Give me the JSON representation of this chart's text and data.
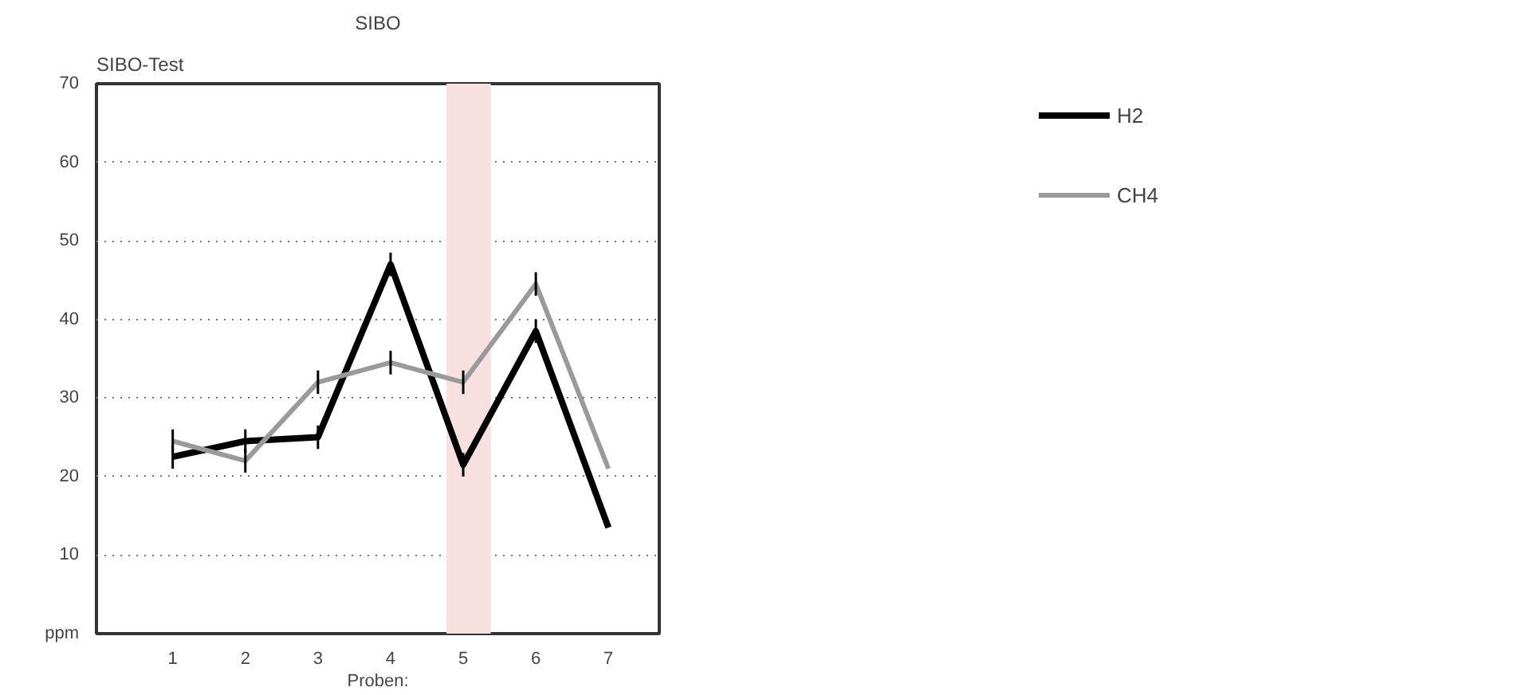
{
  "chart_data": {
    "type": "line",
    "title": "SIBO",
    "annotations": [
      "SIBO-Test"
    ],
    "xlabel": "Proben:",
    "x": [
      1,
      2,
      3,
      4,
      5,
      6,
      7
    ],
    "series": [
      {
        "name": "H2",
        "color": "#000000",
        "values": [
          22.5,
          24.5,
          25,
          47,
          21.5,
          38.5,
          13.5
        ],
        "errors": [
          1.5,
          1.5,
          1.5,
          1.5,
          1.5,
          1.5,
          null
        ]
      },
      {
        "name": "CH4",
        "color": "#9a9a9a",
        "values": [
          24.5,
          22,
          32,
          34.5,
          32,
          44.5,
          21
        ],
        "errors": [
          1.5,
          1.5,
          1.5,
          1.5,
          1.5,
          1.5,
          null
        ]
      }
    ],
    "xlim": [
      -0.05,
      7.7
    ],
    "xticks": [
      1,
      2,
      3,
      4,
      5,
      6,
      7
    ],
    "ylim": [
      0,
      70
    ],
    "yticks": [
      {
        "value": 0,
        "label": "ppm"
      },
      10,
      20,
      30,
      40,
      50,
      60,
      70
    ],
    "bands": [
      {
        "axis": "x",
        "from": 4.77,
        "to": 5.38,
        "label": null,
        "color": "#f9e0e0"
      }
    ],
    "grid": "y",
    "legend": "right",
    "line_style": "solid"
  }
}
